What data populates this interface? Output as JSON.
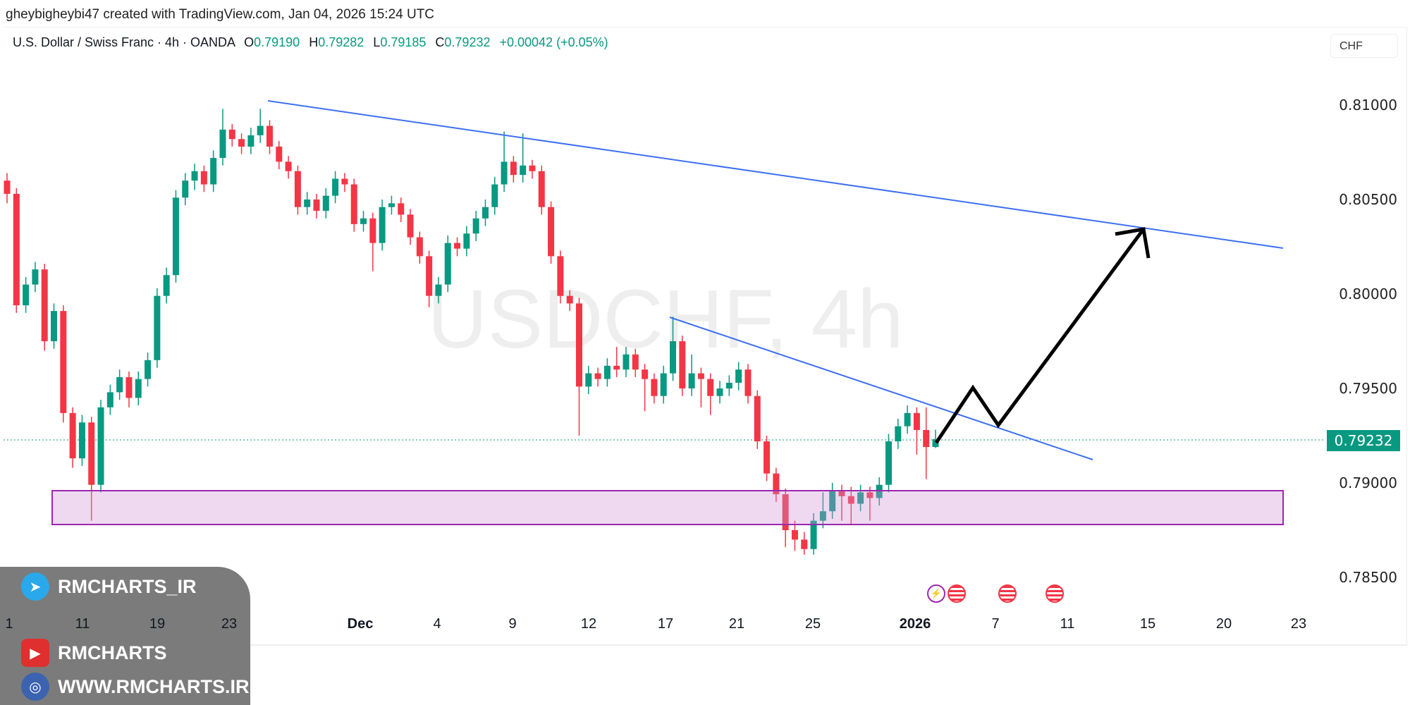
{
  "header": {
    "credit": "gheybigheybi47 created with TradingView.com, Jan 04, 2026 15:24 UTC"
  },
  "legend": {
    "symbol": "U.S. Dollar / Swiss Franc · 4h · OANDA",
    "o_label": "O",
    "o": "0.79190",
    "h_label": "H",
    "h": "0.79282",
    "l_label": "L",
    "l": "0.79185",
    "c_label": "C",
    "c": "0.79232",
    "change": "+0.00042 (+0.05%)"
  },
  "currency": "CHF",
  "watermark": "USDCHF, 4h",
  "price_axis": [
    "0.81000",
    "0.80500",
    "0.80000",
    "0.79500",
    "0.79000",
    "0.78500"
  ],
  "last_price": "0.79232",
  "time_axis": [
    "1",
    "11",
    "19",
    "23",
    "Dec",
    "4",
    "9",
    "12",
    "17",
    "21",
    "25",
    "2026",
    "7",
    "11",
    "15",
    "20",
    "23"
  ],
  "overlay": {
    "telegram": "RMCHARTS_IR",
    "youtube": "RMCHARTS",
    "website": "WWW.RMCHARTS.IR"
  },
  "colors": {
    "up": "#089981",
    "down": "#f23645",
    "trendline": "#3d6ff0",
    "zone": "#9c27b0"
  },
  "chart_data": {
    "type": "candlestick",
    "symbol": "USDCHF",
    "interval": "4h",
    "ylim": [
      0.7835,
      0.8125
    ],
    "ohlc": [
      [
        0.806,
        0.8064,
        0.8048,
        0.8053
      ],
      [
        0.8053,
        0.8056,
        0.799,
        0.7994
      ],
      [
        0.7994,
        0.8009,
        0.799,
        0.8005
      ],
      [
        0.8005,
        0.8017,
        0.8001,
        0.8013
      ],
      [
        0.8013,
        0.8016,
        0.797,
        0.7975
      ],
      [
        0.7975,
        0.7995,
        0.7971,
        0.7991
      ],
      [
        0.7991,
        0.7994,
        0.7932,
        0.7937
      ],
      [
        0.7937,
        0.794,
        0.7908,
        0.7913
      ],
      [
        0.7913,
        0.7936,
        0.7909,
        0.7932
      ],
      [
        0.7932,
        0.7935,
        0.788,
        0.7899
      ],
      [
        0.7899,
        0.7944,
        0.7895,
        0.794
      ],
      [
        0.794,
        0.7952,
        0.7936,
        0.7948
      ],
      [
        0.7948,
        0.796,
        0.7944,
        0.7956
      ],
      [
        0.7956,
        0.7959,
        0.794,
        0.7945
      ],
      [
        0.7945,
        0.7959,
        0.7941,
        0.7955
      ],
      [
        0.7955,
        0.7969,
        0.7951,
        0.7965
      ],
      [
        0.7965,
        0.8003,
        0.7961,
        0.7999
      ],
      [
        0.7999,
        0.8014,
        0.7995,
        0.801
      ],
      [
        0.801,
        0.8055,
        0.8006,
        0.8051
      ],
      [
        0.8051,
        0.8064,
        0.8047,
        0.806
      ],
      [
        0.806,
        0.8069,
        0.8055,
        0.8065
      ],
      [
        0.8065,
        0.8068,
        0.8054,
        0.8058
      ],
      [
        0.8058,
        0.8076,
        0.8054,
        0.8072
      ],
      [
        0.8072,
        0.8098,
        0.8068,
        0.8087
      ],
      [
        0.8087,
        0.809,
        0.8078,
        0.8082
      ],
      [
        0.8082,
        0.8085,
        0.8074,
        0.8078
      ],
      [
        0.8078,
        0.8088,
        0.8074,
        0.8084
      ],
      [
        0.8084,
        0.8098,
        0.808,
        0.8089
      ],
      [
        0.8089,
        0.8092,
        0.8074,
        0.8078
      ],
      [
        0.8078,
        0.8081,
        0.8066,
        0.807
      ],
      [
        0.807,
        0.8073,
        0.8061,
        0.8065
      ],
      [
        0.8065,
        0.8068,
        0.8042,
        0.8046
      ],
      [
        0.8046,
        0.8054,
        0.8042,
        0.805
      ],
      [
        0.805,
        0.8053,
        0.804,
        0.8044
      ],
      [
        0.8044,
        0.8056,
        0.804,
        0.8052
      ],
      [
        0.8052,
        0.8065,
        0.8048,
        0.8061
      ],
      [
        0.8061,
        0.8064,
        0.8054,
        0.8058
      ],
      [
        0.8058,
        0.8061,
        0.8033,
        0.8037
      ],
      [
        0.8037,
        0.8044,
        0.8033,
        0.804
      ],
      [
        0.804,
        0.8043,
        0.8012,
        0.8027
      ],
      [
        0.8027,
        0.805,
        0.8023,
        0.8046
      ],
      [
        0.8046,
        0.8052,
        0.8042,
        0.8048
      ],
      [
        0.8048,
        0.8051,
        0.8038,
        0.8042
      ],
      [
        0.8042,
        0.8045,
        0.8026,
        0.803
      ],
      [
        0.803,
        0.8033,
        0.8016,
        0.802
      ],
      [
        0.802,
        0.8023,
        0.7993,
        0.7999
      ],
      [
        0.7999,
        0.8009,
        0.7995,
        0.8005
      ],
      [
        0.8005,
        0.8031,
        0.8001,
        0.8027
      ],
      [
        0.8027,
        0.803,
        0.802,
        0.8024
      ],
      [
        0.8024,
        0.8036,
        0.802,
        0.8032
      ],
      [
        0.8032,
        0.8044,
        0.8028,
        0.804
      ],
      [
        0.804,
        0.805,
        0.8036,
        0.8046
      ],
      [
        0.8046,
        0.8062,
        0.8042,
        0.8058
      ],
      [
        0.8058,
        0.8086,
        0.8054,
        0.807
      ],
      [
        0.807,
        0.8073,
        0.8059,
        0.8063
      ],
      [
        0.8063,
        0.8085,
        0.8059,
        0.8068
      ],
      [
        0.8068,
        0.8071,
        0.8061,
        0.8065
      ],
      [
        0.8065,
        0.8068,
        0.8042,
        0.8046
      ],
      [
        0.8046,
        0.8049,
        0.8016,
        0.802
      ],
      [
        0.802,
        0.8023,
        0.7995,
        0.7999
      ],
      [
        0.7999,
        0.8002,
        0.7991,
        0.7995
      ],
      [
        0.7995,
        0.7998,
        0.7925,
        0.7951
      ],
      [
        0.7951,
        0.7962,
        0.7947,
        0.7958
      ],
      [
        0.7958,
        0.7961,
        0.7951,
        0.7955
      ],
      [
        0.7955,
        0.7966,
        0.7951,
        0.7962
      ],
      [
        0.7962,
        0.7972,
        0.7956,
        0.796
      ],
      [
        0.796,
        0.7972,
        0.7956,
        0.7968
      ],
      [
        0.7968,
        0.7971,
        0.7956,
        0.796
      ],
      [
        0.796,
        0.7963,
        0.7938,
        0.7955
      ],
      [
        0.7955,
        0.7958,
        0.7942,
        0.7946
      ],
      [
        0.7946,
        0.7962,
        0.7942,
        0.7958
      ],
      [
        0.7958,
        0.7988,
        0.7954,
        0.7975
      ],
      [
        0.7975,
        0.7978,
        0.7946,
        0.795
      ],
      [
        0.795,
        0.7968,
        0.7946,
        0.7958
      ],
      [
        0.7958,
        0.7961,
        0.794,
        0.7955
      ],
      [
        0.7955,
        0.7958,
        0.7936,
        0.7946
      ],
      [
        0.7946,
        0.7954,
        0.7942,
        0.795
      ],
      [
        0.795,
        0.7957,
        0.7946,
        0.7953
      ],
      [
        0.7953,
        0.7964,
        0.7949,
        0.796
      ],
      [
        0.796,
        0.7963,
        0.7942,
        0.7946
      ],
      [
        0.7946,
        0.7949,
        0.7918,
        0.7922
      ],
      [
        0.7922,
        0.7925,
        0.7901,
        0.7905
      ],
      [
        0.7905,
        0.7908,
        0.789,
        0.7894
      ],
      [
        0.7894,
        0.7897,
        0.7866,
        0.7875
      ],
      [
        0.7875,
        0.788,
        0.7864,
        0.787
      ],
      [
        0.787,
        0.7874,
        0.7862,
        0.7865
      ],
      [
        0.7865,
        0.7884,
        0.7862,
        0.788
      ],
      [
        0.788,
        0.7895,
        0.7876,
        0.7885
      ],
      [
        0.7885,
        0.79,
        0.7881,
        0.7896
      ],
      [
        0.7896,
        0.7899,
        0.788,
        0.7893
      ],
      [
        0.7893,
        0.7898,
        0.7878,
        0.7889
      ],
      [
        0.7889,
        0.7899,
        0.7885,
        0.7895
      ],
      [
        0.7895,
        0.7898,
        0.788,
        0.7892
      ],
      [
        0.7892,
        0.7903,
        0.7888,
        0.7899
      ],
      [
        0.7899,
        0.7926,
        0.7895,
        0.7922
      ],
      [
        0.7922,
        0.7934,
        0.7918,
        0.793
      ],
      [
        0.793,
        0.7941,
        0.7926,
        0.7937
      ],
      [
        0.7937,
        0.794,
        0.7915,
        0.7928
      ],
      [
        0.7928,
        0.794,
        0.7902,
        0.7919
      ],
      [
        0.7919,
        0.79282,
        0.79185,
        0.79232
      ]
    ],
    "support_zone": [
      0.7878,
      0.7896
    ],
    "projected_path": [
      0.7921,
      0.795,
      0.793,
      0.8034
    ]
  }
}
